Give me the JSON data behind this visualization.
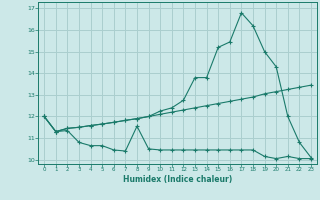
{
  "xlabel": "Humidex (Indice chaleur)",
  "bg_color": "#cce8e8",
  "grid_color": "#aacece",
  "line_color": "#1a7a6a",
  "xlim": [
    -0.5,
    23.5
  ],
  "ylim": [
    9.8,
    17.3
  ],
  "yticks": [
    10,
    11,
    12,
    13,
    14,
    15,
    16,
    17
  ],
  "xticks": [
    0,
    1,
    2,
    3,
    4,
    5,
    6,
    7,
    8,
    9,
    10,
    11,
    12,
    13,
    14,
    15,
    16,
    17,
    18,
    19,
    20,
    21,
    22,
    23
  ],
  "series1_x": [
    0,
    1,
    2,
    3,
    4,
    5,
    6,
    7,
    8,
    9,
    10,
    11,
    12,
    13,
    14,
    15,
    16,
    17,
    18,
    19,
    20,
    21,
    22,
    23
  ],
  "series1_y": [
    12.0,
    11.3,
    11.35,
    10.8,
    10.65,
    10.65,
    10.45,
    10.4,
    11.55,
    10.5,
    10.45,
    10.45,
    10.45,
    10.45,
    10.45,
    10.45,
    10.45,
    10.45,
    10.45,
    10.15,
    10.05,
    10.15,
    10.05,
    10.05
  ],
  "series2_x": [
    0,
    1,
    2,
    3,
    4,
    5,
    6,
    7,
    8,
    9,
    10,
    11,
    12,
    13,
    14,
    15,
    16,
    17,
    18,
    19,
    20,
    21,
    22,
    23
  ],
  "series2_y": [
    12.0,
    11.3,
    11.45,
    11.5,
    11.58,
    11.65,
    11.73,
    11.82,
    11.9,
    12.0,
    12.1,
    12.2,
    12.3,
    12.4,
    12.5,
    12.6,
    12.7,
    12.8,
    12.9,
    13.05,
    13.15,
    13.25,
    13.35,
    13.45
  ],
  "series3_x": [
    0,
    1,
    2,
    3,
    4,
    5,
    6,
    7,
    8,
    9,
    10,
    11,
    12,
    13,
    14,
    15,
    16,
    17,
    18,
    19,
    20,
    21,
    22,
    23
  ],
  "series3_y": [
    12.0,
    11.3,
    11.45,
    11.5,
    11.58,
    11.65,
    11.73,
    11.82,
    11.9,
    12.0,
    12.25,
    12.4,
    12.75,
    13.8,
    13.8,
    15.2,
    15.45,
    16.8,
    16.2,
    15.0,
    14.3,
    12.0,
    10.8,
    10.1
  ]
}
